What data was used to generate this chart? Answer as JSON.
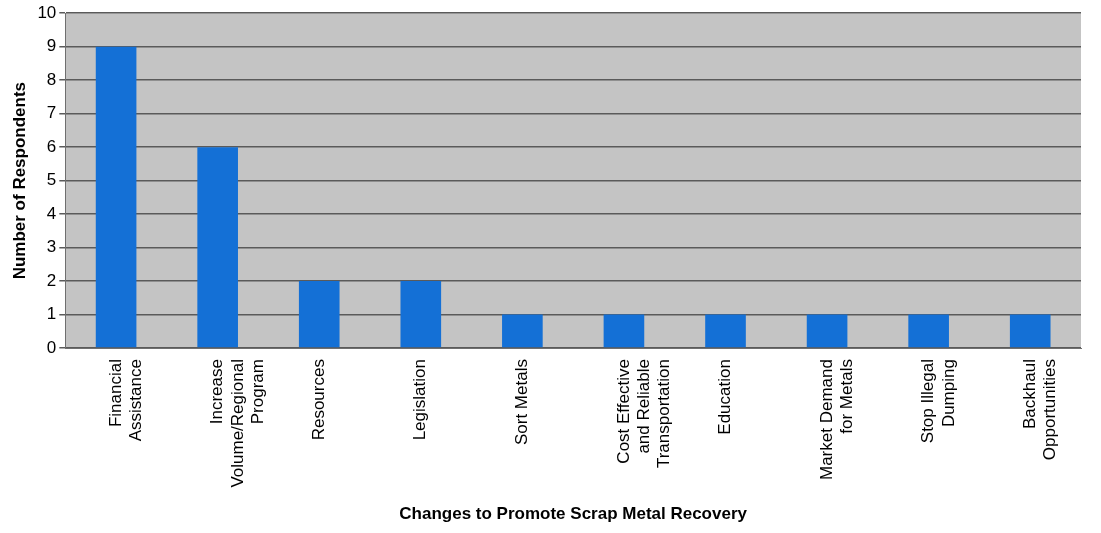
{
  "chart_data": {
    "type": "bar",
    "xlabel": "Changes to Promote Scrap Metal Recovery",
    "ylabel": "Number of Respondents",
    "categories": [
      "Financial Assistance",
      "Increase Volume/Regional Program",
      "Resources",
      "Legislation",
      "Sort Metals",
      "Cost Effective and Reliable Transportation",
      "Education",
      "Market Demand for Metals",
      "Stop Illegal Dumping",
      "Backhaul Opportunities"
    ],
    "values": [
      9,
      6,
      2,
      2,
      1,
      1,
      1,
      1,
      1,
      1
    ],
    "color": "#1470d6",
    "ylim": [
      0,
      10
    ],
    "yticks": [
      0,
      1,
      2,
      3,
      4,
      5,
      6,
      7,
      8,
      9,
      10
    ],
    "grid": "y",
    "legend": false
  }
}
